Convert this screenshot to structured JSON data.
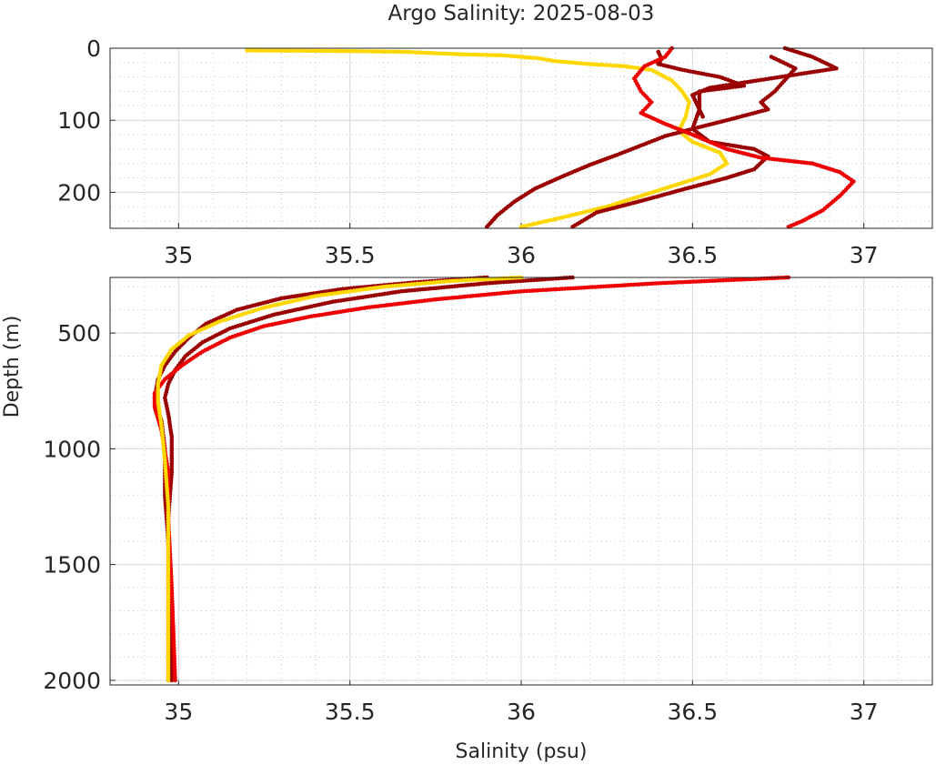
{
  "chart_data": {
    "type": "scatter",
    "title": "Argo Salinity: 2025-08-03",
    "xlabel": "Salinity (psu)",
    "ylabel": "Depth (m)",
    "grid": true,
    "colors": {
      "dark_red": "#9b0000",
      "red": "#ee0000",
      "yellow": "#ffd700",
      "text": "#262626"
    },
    "panels": [
      {
        "name": "upper",
        "xlim": [
          34.8,
          37.2
        ],
        "ylim": [
          250,
          0
        ],
        "x_ticks": [
          35,
          35.5,
          36,
          36.5,
          37
        ],
        "x_tick_labels": [
          "35",
          "35.5",
          "36",
          "36.5",
          "37"
        ],
        "y_ticks": [
          0,
          100,
          200
        ],
        "y_tick_labels": [
          "0",
          "100",
          "200"
        ],
        "series": [
          {
            "color": "#ffd700",
            "points": [
              [
                35.2,
                3
              ],
              [
                35.5,
                4
              ],
              [
                35.66,
                5
              ],
              [
                35.75,
                7
              ],
              [
                35.8,
                8
              ],
              [
                35.87,
                9
              ],
              [
                35.95,
                10
              ],
              [
                36.05,
                14
              ],
              [
                36.1,
                18
              ],
              [
                36.15,
                20
              ],
              [
                36.2,
                22
              ],
              [
                36.3,
                25
              ],
              [
                36.38,
                30
              ],
              [
                36.44,
                45
              ],
              [
                36.47,
                60
              ],
              [
                36.49,
                75
              ],
              [
                36.48,
                95
              ],
              [
                36.46,
                115
              ],
              [
                36.5,
                130
              ],
              [
                36.58,
                145
              ],
              [
                36.6,
                160
              ],
              [
                36.55,
                175
              ],
              [
                36.45,
                190
              ],
              [
                36.35,
                205
              ],
              [
                36.25,
                220
              ],
              [
                36.12,
                235
              ],
              [
                36.0,
                248
              ]
            ]
          },
          {
            "color": "#9b0000",
            "points": [
              [
                36.4,
                5
              ],
              [
                36.41,
                15
              ],
              [
                36.4,
                22
              ],
              [
                36.47,
                30
              ],
              [
                36.58,
                40
              ],
              [
                36.65,
                52
              ],
              [
                36.52,
                60
              ],
              [
                36.52,
                85
              ],
              [
                36.5,
                112
              ],
              [
                36.55,
                130
              ],
              [
                36.68,
                140
              ],
              [
                36.72,
                150
              ],
              [
                36.68,
                168
              ],
              [
                36.6,
                180
              ],
              [
                36.48,
                195
              ],
              [
                36.35,
                212
              ],
              [
                36.22,
                228
              ],
              [
                36.15,
                248
              ]
            ]
          },
          {
            "color": "#9b0000",
            "points": [
              [
                36.73,
                12
              ],
              [
                36.8,
                28
              ],
              [
                36.74,
                60
              ],
              [
                36.7,
                75
              ],
              [
                36.72,
                85
              ],
              [
                36.6,
                100
              ],
              [
                36.5,
                112
              ],
              [
                36.42,
                122
              ],
              [
                36.35,
                135
              ],
              [
                36.28,
                148
              ],
              [
                36.2,
                162
              ],
              [
                36.12,
                178
              ],
              [
                36.04,
                195
              ],
              [
                35.98,
                213
              ],
              [
                35.93,
                232
              ],
              [
                35.9,
                248
              ]
            ]
          },
          {
            "color": "#9b0000",
            "points": [
              [
                36.77,
                0
              ],
              [
                36.85,
                12
              ],
              [
                36.92,
                28
              ],
              [
                36.55,
                55
              ],
              [
                36.5,
                65
              ],
              [
                36.53,
                95
              ]
            ]
          },
          {
            "color": "#ee0000",
            "points": [
              [
                36.44,
                0
              ],
              [
                36.42,
                12
              ],
              [
                36.36,
                25
              ],
              [
                36.33,
                42
              ],
              [
                36.35,
                60
              ],
              [
                36.38,
                75
              ],
              [
                36.35,
                90
              ],
              [
                36.42,
                105
              ],
              [
                36.5,
                120
              ],
              [
                36.6,
                140
              ],
              [
                36.7,
                152
              ],
              [
                36.85,
                160
              ],
              [
                36.93,
                172
              ],
              [
                36.97,
                185
              ],
              [
                36.93,
                205
              ],
              [
                36.88,
                225
              ],
              [
                36.82,
                240
              ],
              [
                36.78,
                248
              ]
            ]
          }
        ]
      },
      {
        "name": "lower",
        "xlim": [
          34.8,
          37.2
        ],
        "ylim": [
          2020,
          260
        ],
        "x_ticks": [
          35,
          35.5,
          36,
          36.5,
          37
        ],
        "x_tick_labels": [
          "35",
          "35.5",
          "36",
          "36.5",
          "37"
        ],
        "y_ticks": [
          500,
          1000,
          1500,
          2000
        ],
        "y_tick_labels": [
          "500",
          "1000",
          "1500",
          "2000"
        ],
        "series": [
          {
            "color": "#9b0000",
            "points": [
              [
                36.15,
                260
              ],
              [
                35.9,
                285
              ],
              [
                35.65,
                320
              ],
              [
                35.45,
                365
              ],
              [
                35.28,
                420
              ],
              [
                35.15,
                480
              ],
              [
                35.07,
                540
              ],
              [
                35.02,
                600
              ],
              [
                34.99,
                660
              ],
              [
                34.97,
                720
              ],
              [
                34.96,
                780
              ],
              [
                34.97,
                850
              ],
              [
                34.98,
                950
              ],
              [
                34.98,
                1100
              ],
              [
                34.97,
                1300
              ],
              [
                34.97,
                1500
              ],
              [
                34.97,
                1800
              ],
              [
                34.97,
                2000
              ]
            ]
          },
          {
            "color": "#9b0000",
            "points": [
              [
                35.9,
                260
              ],
              [
                35.7,
                280
              ],
              [
                35.48,
                310
              ],
              [
                35.3,
                350
              ],
              [
                35.17,
                400
              ],
              [
                35.08,
                460
              ],
              [
                35.03,
                520
              ],
              [
                34.99,
                580
              ],
              [
                34.96,
                640
              ],
              [
                34.94,
                700
              ],
              [
                34.93,
                780
              ],
              [
                34.95,
                880
              ],
              [
                34.96,
                1000
              ],
              [
                34.96,
                1200
              ],
              [
                34.97,
                1400
              ],
              [
                34.98,
                1700
              ],
              [
                34.98,
                2000
              ]
            ]
          },
          {
            "color": "#ee0000",
            "points": [
              [
                36.78,
                260
              ],
              [
                36.4,
                285
              ],
              [
                36.0,
                320
              ],
              [
                35.75,
                355
              ],
              [
                35.55,
                390
              ],
              [
                35.38,
                430
              ],
              [
                35.25,
                470
              ],
              [
                35.15,
                520
              ],
              [
                35.07,
                580
              ],
              [
                35.01,
                640
              ],
              [
                34.96,
                700
              ],
              [
                34.93,
                760
              ],
              [
                34.93,
                820
              ],
              [
                34.95,
                920
              ],
              [
                34.97,
                1100
              ],
              [
                34.97,
                1300
              ],
              [
                34.98,
                1600
              ],
              [
                34.99,
                2000
              ]
            ]
          },
          {
            "color": "#ffd700",
            "points": [
              [
                36.0,
                260
              ],
              [
                35.8,
                275
              ],
              [
                35.6,
                300
              ],
              [
                35.4,
                340
              ],
              [
                35.25,
                390
              ],
              [
                35.12,
                450
              ],
              [
                35.03,
                510
              ],
              [
                34.98,
                570
              ],
              [
                34.95,
                640
              ],
              [
                34.94,
                720
              ],
              [
                34.94,
                800
              ],
              [
                34.95,
                900
              ],
              [
                34.96,
                1050
              ],
              [
                34.97,
                1250
              ],
              [
                34.97,
                1500
              ],
              [
                34.97,
                1800
              ],
              [
                34.97,
                2000
              ]
            ]
          }
        ]
      }
    ]
  }
}
